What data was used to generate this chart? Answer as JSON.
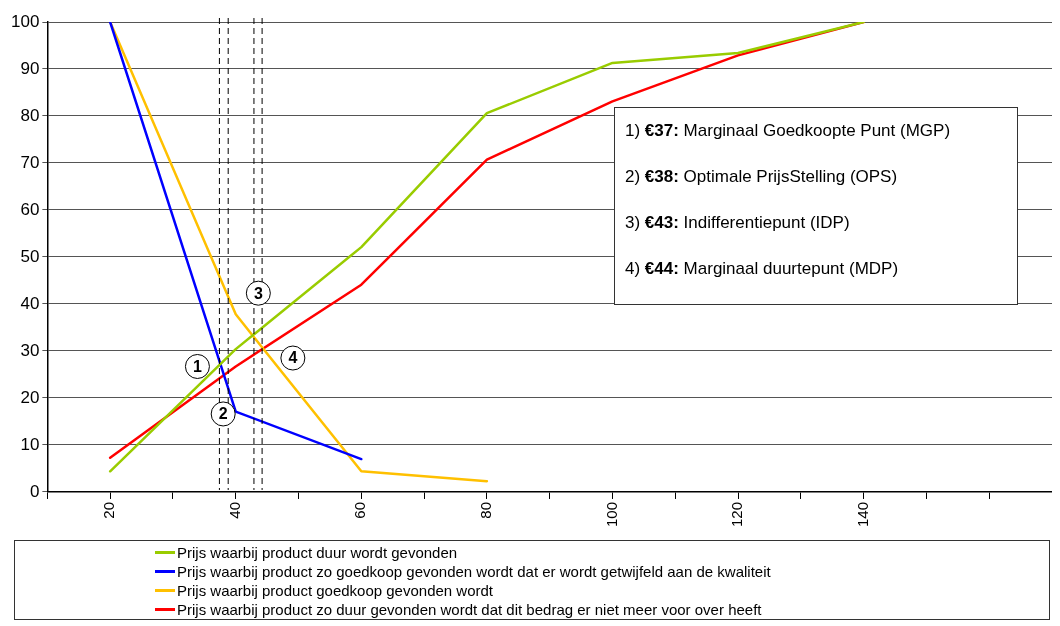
{
  "chart_data": {
    "type": "line",
    "x": [
      20,
      40,
      60,
      80,
      100,
      120,
      140
    ],
    "series": [
      {
        "name": "Prijs waarbij product duur wordt gevonden",
        "color": "#99cc00",
        "values": [
          4.4,
          30.4,
          52.1,
          80.6,
          91.3,
          93.4,
          100
        ]
      },
      {
        "name": "Prijs waarbij product zo goedkoop gevonden wordt dat er wordt getwijfeld aan de kwaliteit",
        "color": "#0000ff",
        "values": [
          100,
          17.1,
          7,
          null,
          null,
          null,
          null
        ]
      },
      {
        "name": "Prijs waarbij product goedkoop gevonden wordt",
        "color": "#ffc000",
        "values": [
          100,
          37.8,
          4.4,
          2.3,
          null,
          null,
          null
        ]
      },
      {
        "name": "Prijs waarbij product zo duur gevonden wordt dat dit bedrag er niet meer voor over heeft",
        "color": "#ff0000",
        "values": [
          7.3,
          26.7,
          44.1,
          70.7,
          83.1,
          92.9,
          100
        ]
      }
    ],
    "xlim": [
      10,
      170
    ],
    "xticks": [
      {
        "value": 10,
        "label": null
      },
      20,
      {
        "value": 30,
        "label": null
      },
      40,
      {
        "value": 50,
        "label": null
      },
      60,
      {
        "value": 70,
        "label": null
      },
      80,
      {
        "value": 90,
        "label": null
      },
      100,
      {
        "value": 110,
        "label": null
      },
      120,
      {
        "value": 130,
        "label": null
      },
      140,
      {
        "value": 150,
        "label": null
      },
      {
        "value": 160,
        "label": null
      }
    ],
    "ylim": [
      0,
      100
    ],
    "yticks": [
      0,
      10,
      20,
      30,
      40,
      50,
      60,
      70,
      80,
      90,
      100
    ],
    "grid": "y",
    "legend": "bottom",
    "marker": "none",
    "line_style": "solid",
    "ref_lines": [
      {
        "axis": "x",
        "value": 37.4,
        "color": "#000000",
        "line_style": "dashed"
      },
      {
        "axis": "x",
        "value": 38.8,
        "color": "#000000",
        "line_style": "dashed"
      },
      {
        "axis": "x",
        "value": 42.9,
        "color": "#000000",
        "line_style": "dashed"
      },
      {
        "axis": "x",
        "value": 44.2,
        "color": "#000000",
        "line_style": "dashed"
      }
    ],
    "annotations": [
      {
        "text": "1",
        "x": 33.9,
        "y": 26.7
      },
      {
        "text": "2",
        "x": 38,
        "y": 16.6
      },
      {
        "text": "3",
        "x": 43.6,
        "y": 42.3
      },
      {
        "text": "4",
        "x": 49.1,
        "y": 28.5
      },
      "1) €37: Marginaal Goedkoopte Punt (MGP)",
      "2) €38: Optimale PrijsStelling (OPS)",
      "3) €43: Indifferentiepunt (IDP)",
      "4) €44: Marginaal duurtepunt (MDP)"
    ]
  }
}
